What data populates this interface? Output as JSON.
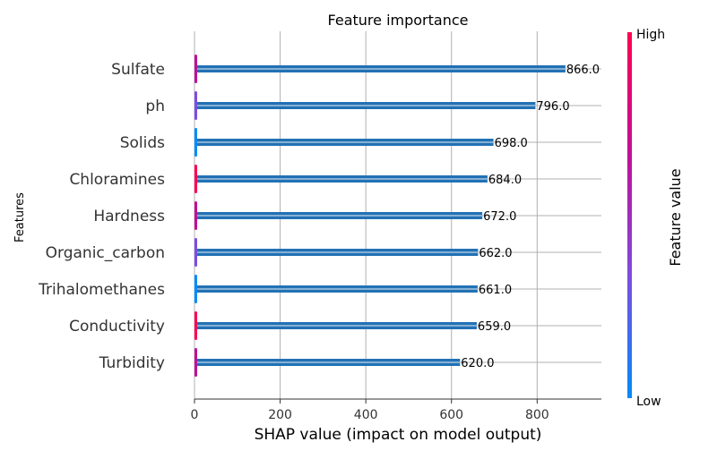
{
  "chart_data": {
    "type": "bar",
    "orientation": "horizontal",
    "title": "Feature importance",
    "xlabel": "SHAP value (impact on model output)",
    "ylabel": "Features",
    "categories": [
      "Sulfate",
      "ph",
      "Solids",
      "Chloramines",
      "Hardness",
      "Organic_carbon",
      "Trihalomethanes",
      "Conductivity",
      "Turbidity"
    ],
    "values": [
      866.0,
      796.0,
      698.0,
      684.0,
      672.0,
      662.0,
      661.0,
      659.0,
      620.0
    ],
    "value_labels": [
      "866.0",
      "796.0",
      "698.0",
      "684.0",
      "672.0",
      "662.0",
      "661.0",
      "659.0",
      "620.0"
    ],
    "xlim": [
      0,
      950
    ],
    "xticks": [
      0,
      200,
      400,
      600,
      800
    ],
    "xtick_labels": [
      "0",
      "200",
      "400",
      "600",
      "800"
    ],
    "grid": "vertical",
    "colorbar": {
      "label": "Feature value",
      "high_label": "High",
      "low_label": "Low",
      "colors": [
        "#008bfb",
        "#7d4de0",
        "#c01098",
        "#ff0052"
      ]
    },
    "bar_color": "#2271b4",
    "stub_colors": [
      "#c01098",
      "#7d4de0",
      "#008bfb",
      "#ff0052"
    ]
  }
}
